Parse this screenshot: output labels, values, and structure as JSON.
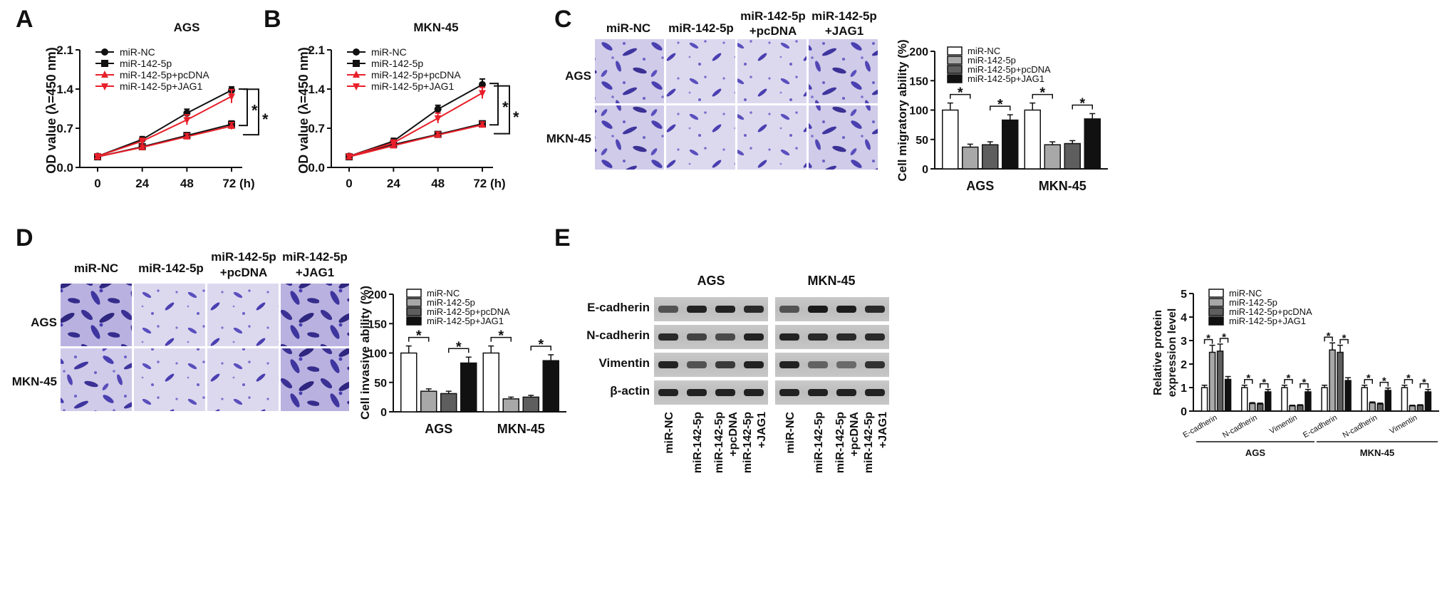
{
  "panelA": {
    "letter": "A",
    "title": "AGS",
    "ylabel": "OD value (λ=450 nm)",
    "yticks": [
      "0.0",
      "0.7",
      "1.4",
      "2.1"
    ],
    "xticks": [
      "0",
      "24",
      "48",
      "72 (h)"
    ],
    "legend": [
      "miR-NC",
      "miR-142-5p",
      "miR-142-5p+pcDNA",
      "miR-142-5p+JAG1"
    ],
    "star": "*"
  },
  "panelB": {
    "letter": "B",
    "title": "MKN-45",
    "ylabel": "OD value (λ=450 nm)",
    "yticks": [
      "0.0",
      "0.7",
      "1.4",
      "2.1"
    ],
    "xticks": [
      "0",
      "24",
      "48",
      "72 (h)"
    ],
    "legend": [
      "miR-NC",
      "miR-142-5p",
      "miR-142-5p+pcDNA",
      "miR-142-5p+JAG1"
    ],
    "star": "*"
  },
  "panelC": {
    "letter": "C",
    "image_cols": [
      "miR-NC",
      "miR-142-5p",
      "miR-142-5p",
      "+pcDNA",
      "miR-142-5p",
      "+JAG1"
    ],
    "image_rows": [
      "AGS",
      "MKN-45"
    ],
    "ylabel": "Cell migratory ability (%)",
    "yticks": [
      "0",
      "50",
      "100",
      "150",
      "200"
    ],
    "groups": [
      "AGS",
      "MKN-45"
    ],
    "legend": [
      "miR-NC",
      "miR-142-5p",
      "miR-142-5p+pcDNA",
      "miR-142-5p+JAG1"
    ],
    "star": "*"
  },
  "panelD": {
    "letter": "D",
    "image_cols": [
      "miR-NC",
      "miR-142-5p",
      "miR-142-5p",
      "+pcDNA",
      "miR-142-5p",
      "+JAG1"
    ],
    "image_rows": [
      "AGS",
      "MKN-45"
    ],
    "ylabel": "Cell invasive ability (%)",
    "yticks": [
      "0",
      "50",
      "100",
      "150",
      "200"
    ],
    "groups": [
      "AGS",
      "MKN-45"
    ],
    "legend": [
      "miR-NC",
      "miR-142-5p",
      "miR-142-5p+pcDNA",
      "miR-142-5p+JAG1"
    ],
    "star": "*"
  },
  "panelE": {
    "letter": "E",
    "blot_groups": [
      "AGS",
      "MKN-45"
    ],
    "blot_rows": [
      "E-cadherin",
      "N-cadherin",
      "Vimentin",
      "β-actin"
    ],
    "lane_labels": [
      [
        "miR-NC"
      ],
      [
        "miR-142-5p"
      ],
      [
        "miR-142-5p",
        "+pcDNA"
      ],
      [
        "miR-142-5p",
        "+JAG1"
      ],
      [
        "miR-NC"
      ],
      [
        "miR-142-5p"
      ],
      [
        "miR-142-5p",
        "+pcDNA"
      ],
      [
        "miR-142-5p",
        "+JAG1"
      ]
    ],
    "ylabel_lines": [
      "Relative protein",
      "expression level"
    ],
    "yticks": [
      "0",
      "1",
      "2",
      "3",
      "4",
      "5"
    ],
    "categories": [
      "E-cadherin",
      "N-cadherin",
      "Vimentin",
      "E-cadherin",
      "N-cadherin",
      "Vimentin"
    ],
    "groups": [
      "AGS",
      "MKN-45"
    ],
    "legend": [
      "miR-NC",
      "miR-142-5p",
      "miR-142-5p+pcDNA",
      "miR-142-5p+JAG1"
    ],
    "star": "*"
  },
  "colors": {
    "black": "#111111",
    "red": "#e8202a",
    "stain": "#4a3fb0",
    "bg_stain": "#c9c4e6"
  },
  "chart_data": [
    {
      "id": "A",
      "type": "line",
      "title": "AGS",
      "ylabel": "OD value (λ=450 nm)",
      "x": [
        0,
        24,
        48,
        72
      ],
      "ylim": [
        0,
        2.1
      ],
      "series": [
        {
          "name": "miR-NC",
          "values": [
            0.2,
            0.5,
            0.97,
            1.38
          ],
          "err": [
            0.03,
            0.05,
            0.07,
            0.06
          ],
          "color": "#111111",
          "marker": "circle"
        },
        {
          "name": "miR-142-5p",
          "values": [
            0.19,
            0.37,
            0.57,
            0.77
          ],
          "err": [
            0.03,
            0.04,
            0.05,
            0.06
          ],
          "color": "#111111",
          "marker": "square"
        },
        {
          "name": "miR-142-5p+pcDNA",
          "values": [
            0.19,
            0.36,
            0.55,
            0.74
          ],
          "err": [
            0.03,
            0.04,
            0.05,
            0.06
          ],
          "color": "#e8202a",
          "marker": "triangle-up"
        },
        {
          "name": "miR-142-5p+JAG1",
          "values": [
            0.2,
            0.47,
            0.85,
            1.27
          ],
          "err": [
            0.03,
            0.05,
            0.09,
            0.12
          ],
          "color": "#e8202a",
          "marker": "triangle-down"
        }
      ]
    },
    {
      "id": "B",
      "type": "line",
      "title": "MKN-45",
      "ylabel": "OD value (λ=450 nm)",
      "x": [
        0,
        24,
        48,
        72
      ],
      "ylim": [
        0,
        2.1
      ],
      "series": [
        {
          "name": "miR-NC",
          "values": [
            0.2,
            0.47,
            1.04,
            1.48
          ],
          "err": [
            0.03,
            0.05,
            0.07,
            0.1
          ],
          "color": "#111111",
          "marker": "circle"
        },
        {
          "name": "miR-142-5p",
          "values": [
            0.19,
            0.41,
            0.59,
            0.78
          ],
          "err": [
            0.03,
            0.04,
            0.05,
            0.05
          ],
          "color": "#111111",
          "marker": "square"
        },
        {
          "name": "miR-142-5p+pcDNA",
          "values": [
            0.19,
            0.39,
            0.58,
            0.76
          ],
          "err": [
            0.03,
            0.04,
            0.05,
            0.05
          ],
          "color": "#e8202a",
          "marker": "triangle-up"
        },
        {
          "name": "miR-142-5p+JAG1",
          "values": [
            0.2,
            0.44,
            0.88,
            1.33
          ],
          "err": [
            0.03,
            0.05,
            0.09,
            0.1
          ],
          "color": "#e8202a",
          "marker": "triangle-down"
        }
      ]
    },
    {
      "id": "C",
      "type": "bar",
      "ylabel": "Cell migratory ability (%)",
      "categories": [
        "AGS",
        "MKN-45"
      ],
      "ylim": [
        0,
        200
      ],
      "series": [
        {
          "name": "miR-NC",
          "values": [
            100,
            100
          ],
          "err": [
            12,
            12
          ]
        },
        {
          "name": "miR-142-5p",
          "values": [
            37,
            41
          ],
          "err": [
            5,
            5
          ]
        },
        {
          "name": "miR-142-5p+pcDNA",
          "values": [
            41,
            43
          ],
          "err": [
            5,
            5
          ]
        },
        {
          "name": "miR-142-5p+JAG1",
          "values": [
            83,
            85
          ],
          "err": [
            9,
            9
          ]
        }
      ]
    },
    {
      "id": "D",
      "type": "bar",
      "ylabel": "Cell invasive ability (%)",
      "categories": [
        "AGS",
        "MKN-45"
      ],
      "ylim": [
        0,
        200
      ],
      "series": [
        {
          "name": "miR-NC",
          "values": [
            100,
            100
          ],
          "err": [
            12,
            12
          ]
        },
        {
          "name": "miR-142-5p",
          "values": [
            35,
            22
          ],
          "err": [
            4,
            3
          ]
        },
        {
          "name": "miR-142-5p+pcDNA",
          "values": [
            31,
            25
          ],
          "err": [
            4,
            3
          ]
        },
        {
          "name": "miR-142-5p+JAG1",
          "values": [
            83,
            87
          ],
          "err": [
            10,
            10
          ]
        }
      ]
    },
    {
      "id": "E",
      "type": "bar",
      "ylabel": "Relative protein expression level",
      "categories": [
        "E-cadherin",
        "N-cadherin",
        "Vimentin",
        "E-cadherin",
        "N-cadherin",
        "Vimentin"
      ],
      "ylim": [
        0,
        5
      ],
      "series": [
        {
          "name": "miR-NC",
          "values": [
            1.0,
            1.0,
            1.0,
            1.0,
            1.0,
            1.0
          ],
          "err": [
            0.1,
            0.1,
            0.1,
            0.1,
            0.1,
            0.1
          ]
        },
        {
          "name": "miR-142-5p",
          "values": [
            2.5,
            0.32,
            0.22,
            2.6,
            0.35,
            0.22
          ],
          "err": [
            0.3,
            0.04,
            0.03,
            0.3,
            0.04,
            0.03
          ]
        },
        {
          "name": "miR-142-5p+pcDNA",
          "values": [
            2.55,
            0.3,
            0.24,
            2.5,
            0.3,
            0.24
          ],
          "err": [
            0.3,
            0.04,
            0.03,
            0.3,
            0.04,
            0.03
          ]
        },
        {
          "name": "miR-142-5p+JAG1",
          "values": [
            1.35,
            0.82,
            0.82,
            1.3,
            0.88,
            0.82
          ],
          "err": [
            0.12,
            0.1,
            0.1,
            0.12,
            0.1,
            0.1
          ]
        }
      ]
    }
  ]
}
